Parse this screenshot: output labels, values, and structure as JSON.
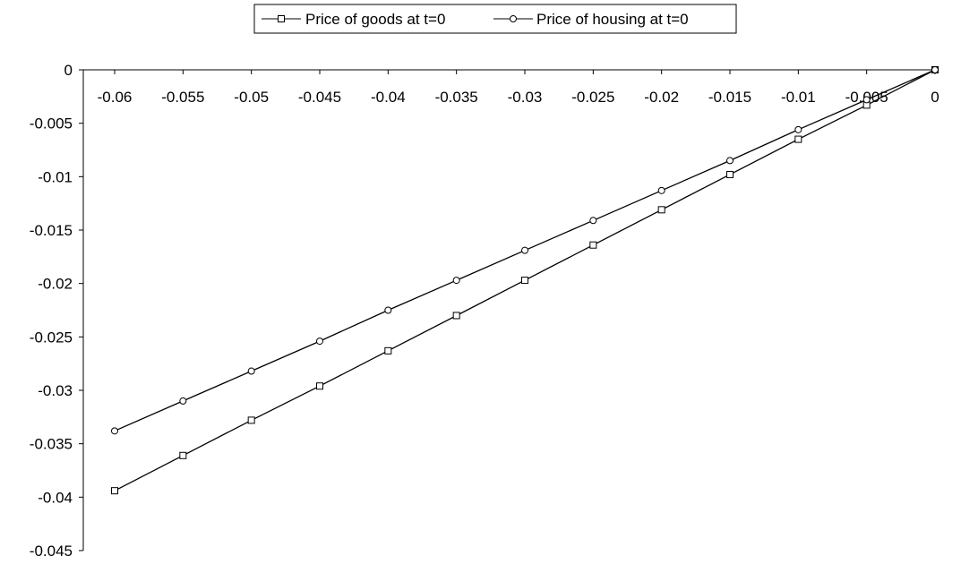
{
  "chart_data": {
    "type": "line",
    "title": "",
    "xlabel": "",
    "ylabel": "",
    "x": [
      -0.06,
      -0.055,
      -0.05,
      -0.045,
      -0.04,
      -0.035,
      -0.03,
      -0.025,
      -0.02,
      -0.015,
      -0.01,
      -0.005,
      0
    ],
    "x_ticks": [
      "-0.06",
      "-0.055",
      "-0.05",
      "-0.045",
      "-0.04",
      "-0.035",
      "-0.03",
      "-0.025",
      "-0.02",
      "-0.015",
      "-0.01",
      "-0.005",
      "0"
    ],
    "y_ticks": [
      "0",
      "-0.005",
      "-0.01",
      "-0.015",
      "-0.02",
      "-0.025",
      "-0.03",
      "-0.035",
      "-0.04",
      "-0.045"
    ],
    "xlim": [
      -0.06,
      0
    ],
    "ylim": [
      -0.045,
      0
    ],
    "x_axis_position": "top (at y = 0)",
    "grid": false,
    "legend_position": "top-center",
    "line_color": "#000000",
    "series": [
      {
        "name": "Price of goods at t=0",
        "marker": "square",
        "values": [
          -0.0394,
          -0.0361,
          -0.0328,
          -0.0296,
          -0.0263,
          -0.023,
          -0.0197,
          -0.0164,
          -0.0131,
          -0.0098,
          -0.0065,
          -0.0033,
          0
        ]
      },
      {
        "name": "Price of housing at t=0",
        "marker": "circle",
        "values": [
          -0.0338,
          -0.031,
          -0.0282,
          -0.0254,
          -0.0225,
          -0.0197,
          -0.0169,
          -0.0141,
          -0.0113,
          -0.0085,
          -0.0056,
          -0.0028,
          0
        ]
      }
    ]
  }
}
